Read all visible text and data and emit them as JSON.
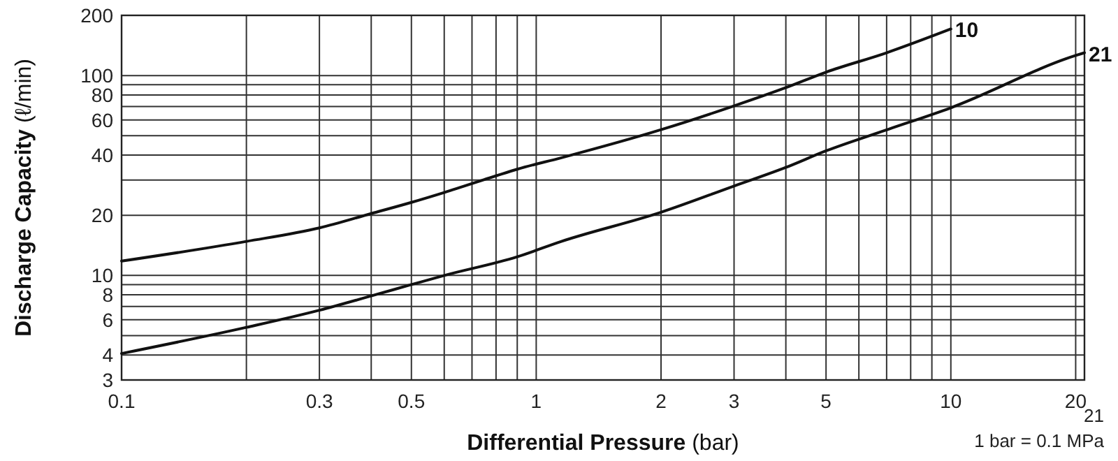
{
  "chart_data": {
    "type": "line",
    "xlabel": "Differential Pressure (bar)",
    "ylabel": "Discharge Capacity (ℓ/min)",
    "log": "xy",
    "grid": true,
    "marker": "none",
    "line_style": "solid",
    "xlim": [
      0.1,
      21
    ],
    "xticks": [
      0.1,
      {
        "value": 0.2,
        "label": null
      },
      0.3,
      {
        "value": 0.4,
        "label": null
      },
      0.5,
      {
        "value": 0.6,
        "label": null
      },
      {
        "value": 0.7,
        "label": null
      },
      {
        "value": 0.8,
        "label": null
      },
      {
        "value": 0.9,
        "label": null
      },
      1,
      2,
      3,
      {
        "value": 4,
        "label": null
      },
      5,
      {
        "value": 6,
        "label": null
      },
      {
        "value": 7,
        "label": null
      },
      {
        "value": 8,
        "label": null
      },
      {
        "value": 9,
        "label": null
      },
      10,
      20,
      {
        "value": 21,
        "label": null
      }
    ],
    "ylim": [
      3,
      200
    ],
    "yticks": [
      3,
      4,
      {
        "value": 5,
        "label": null
      },
      6,
      {
        "value": 7,
        "label": null
      },
      8,
      {
        "value": 9,
        "label": null
      },
      10,
      20,
      {
        "value": 30,
        "label": null
      },
      40,
      {
        "value": 50,
        "label": null
      },
      60,
      {
        "value": 70,
        "label": null
      },
      80,
      {
        "value": 90,
        "label": null
      },
      100,
      200
    ],
    "series": [
      {
        "name": "10",
        "color": "#111111",
        "x": [
          0.1,
          0.2,
          0.3,
          0.4,
          0.5,
          0.6,
          0.8,
          0.9,
          1.15,
          2,
          3,
          4,
          5,
          7,
          10
        ],
        "values": [
          11.8,
          14.8,
          17.3,
          20.4,
          23.2,
          26,
          31.5,
          34,
          38.8,
          53.6,
          70.5,
          87,
          104,
          130,
          171
        ]
      },
      {
        "name": "21",
        "color": "#111111",
        "x": [
          0.1,
          0.2,
          0.3,
          0.4,
          0.5,
          0.6,
          0.9,
          1.15,
          2,
          3,
          4,
          5,
          7,
          10,
          20,
          21
        ],
        "values": [
          4.07,
          5.5,
          6.7,
          7.9,
          9.0,
          10,
          12.4,
          14.8,
          20.7,
          28,
          34.7,
          42,
          53.5,
          69,
          126,
          130
        ]
      }
    ],
    "annotations": [
      "21",
      "1 bar = 0.1 MPa"
    ]
  }
}
